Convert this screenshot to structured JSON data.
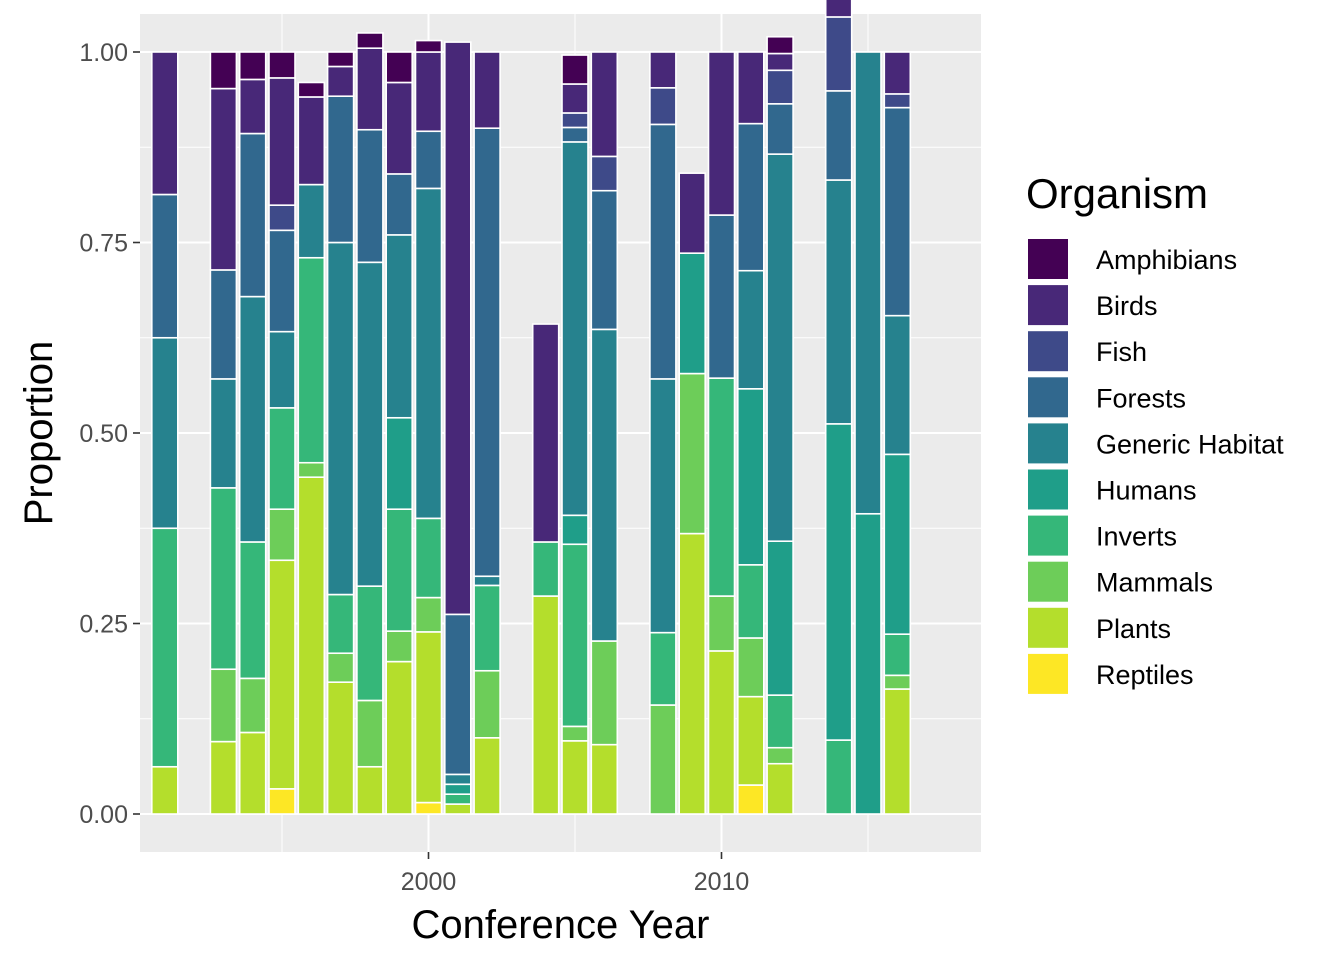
{
  "chart_data": {
    "type": "bar",
    "stacked": "proportion",
    "title": "",
    "xlabel": "Conference Year",
    "ylabel": "Proportion",
    "x_ticks": [
      2000,
      2010
    ],
    "y_ticks": [
      "0.00",
      "0.25",
      "0.50",
      "0.75",
      "1.00"
    ],
    "ylim": [
      0,
      1
    ],
    "xlim": [
      1989.5,
      2018.5
    ],
    "grid": true,
    "legend": {
      "title": "Organism",
      "position": "right"
    },
    "colors": {
      "Amphibians": "#440154",
      "Birds": "#482878",
      "Fish": "#3e4a89",
      "Forests": "#31688e",
      "Generic Habitat": "#26828e",
      "Humans": "#1f9e89",
      "Inverts": "#35b779",
      "Mammals": "#6dcd59",
      "Plants": "#b4de2c",
      "Reptiles": "#fde725"
    },
    "categories_order_top_to_bottom": [
      "Amphibians",
      "Birds",
      "Fish",
      "Forests",
      "Generic Habitat",
      "Humans",
      "Inverts",
      "Mammals",
      "Plants",
      "Reptiles"
    ],
    "x": [
      1991,
      1993,
      1994,
      1995,
      1996,
      1997,
      1998,
      1999,
      2000,
      2001,
      2002,
      2004,
      2005,
      2006,
      2008,
      2009,
      2010,
      2011,
      2012,
      2014,
      2015,
      2016,
      2017
    ],
    "series": [
      {
        "name": "Reptiles",
        "values": [
          0,
          0,
          0,
          0.033,
          0,
          0,
          0,
          0,
          0.015,
          0,
          0,
          0,
          0,
          0,
          0,
          0,
          0,
          0.038,
          0,
          0,
          0,
          0,
          0
        ]
      },
      {
        "name": "Plants",
        "values": [
          0.062,
          0.095,
          0.107,
          0.3,
          0.442,
          0.173,
          0.062,
          0.2,
          0.224,
          0.013,
          0.1,
          0.286,
          0.096,
          0.091,
          0,
          0.368,
          0.214,
          0.116,
          0.066,
          0,
          0,
          0.164,
          0
        ]
      },
      {
        "name": "Mammals",
        "values": [
          0,
          0.095,
          0.071,
          0.067,
          0.019,
          0.038,
          0.087,
          0.04,
          0.045,
          0,
          0.088,
          0,
          0.019,
          0.136,
          0.143,
          0.21,
          0.072,
          0.077,
          0.021,
          0,
          0,
          0.018,
          0
        ]
      },
      {
        "name": "Inverts",
        "values": [
          0.313,
          0.238,
          0.179,
          0.133,
          0.269,
          0.077,
          0.15,
          0.16,
          0.104,
          0.013,
          0.112,
          0.071,
          0.239,
          0,
          0.095,
          0,
          0.286,
          0.096,
          0.069,
          0.097,
          0,
          0.054,
          0
        ]
      },
      {
        "name": "Humans",
        "values": [
          0,
          0,
          0,
          0,
          0,
          0,
          0,
          0.12,
          0,
          0.013,
          0,
          0,
          0.038,
          0,
          0,
          0.158,
          0,
          0.231,
          0.202,
          0.415,
          0.394,
          0.236,
          0
        ]
      },
      {
        "name": "Generic Habitat",
        "values": [
          0.25,
          0.143,
          0.322,
          0.1,
          0.096,
          0.462,
          0.425,
          0.24,
          0.433,
          0.013,
          0.012,
          0,
          0.49,
          0.409,
          0.333,
          0,
          0,
          0.155,
          0.508,
          0.32,
          0.606,
          0.182,
          0
        ]
      },
      {
        "name": "Forests",
        "values": [
          0.188,
          0.143,
          0.214,
          0.133,
          0,
          0.192,
          0.174,
          0.08,
          0.075,
          0.21,
          0.588,
          0,
          0.019,
          0.182,
          0.334,
          0,
          0.214,
          0.193,
          0.066,
          0.117,
          0,
          0.273,
          0
        ]
      },
      {
        "name": "Fish",
        "values": [
          0,
          0,
          0,
          0.033,
          0,
          0,
          0,
          0,
          0,
          0,
          0,
          0,
          0.019,
          0.045,
          0.048,
          0,
          0,
          0,
          0.044,
          0.097,
          0,
          0.018,
          0
        ]
      },
      {
        "name": "Birds",
        "values": [
          0.187,
          0.238,
          0.071,
          0.167,
          0.115,
          0.039,
          0.107,
          0.12,
          0.104,
          0.751,
          0.1,
          0.286,
          0.038,
          0.137,
          0.047,
          0.105,
          0.214,
          0.094,
          0.022,
          0.074,
          0,
          0.055,
          0
        ]
      },
      {
        "name": "Amphibians",
        "values": [
          0,
          0.048,
          0.036,
          0.034,
          0.019,
          0.019,
          0.02,
          0.04,
          0.015,
          0,
          0,
          0,
          0.038,
          0,
          0,
          0,
          0,
          0,
          0.022,
          0,
          0,
          0,
          0
        ]
      }
    ]
  }
}
